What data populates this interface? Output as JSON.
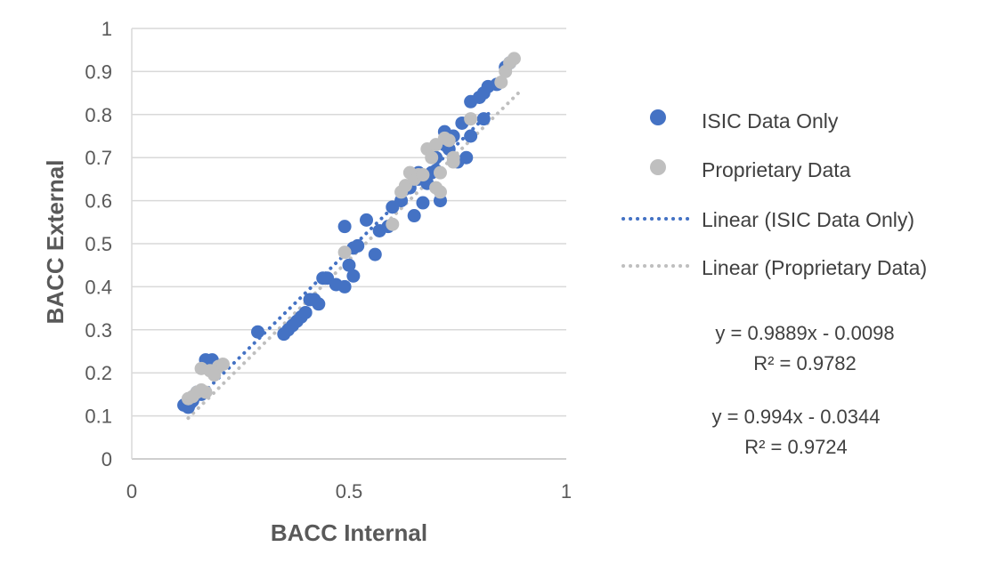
{
  "chart_data": {
    "type": "scatter",
    "title": "",
    "xlabel": "BACC Internal",
    "ylabel": "BACC External",
    "xlim": [
      0,
      1
    ],
    "ylim": [
      0,
      1
    ],
    "x_ticks": [
      "0",
      "0.5",
      "1"
    ],
    "y_ticks": [
      "0",
      "0.1",
      "0.2",
      "0.3",
      "0.4",
      "0.5",
      "0.6",
      "0.7",
      "0.8",
      "0.9",
      "1"
    ],
    "grid": "horizontal",
    "legend_position": "right",
    "series": [
      {
        "name": "ISIC Data Only",
        "color": "#4472C4",
        "points": [
          [
            0.12,
            0.125
          ],
          [
            0.13,
            0.12
          ],
          [
            0.135,
            0.13
          ],
          [
            0.14,
            0.135
          ],
          [
            0.15,
            0.155
          ],
          [
            0.16,
            0.15
          ],
          [
            0.17,
            0.23
          ],
          [
            0.18,
            0.21
          ],
          [
            0.185,
            0.23
          ],
          [
            0.19,
            0.22
          ],
          [
            0.29,
            0.295
          ],
          [
            0.35,
            0.29
          ],
          [
            0.36,
            0.3
          ],
          [
            0.37,
            0.31
          ],
          [
            0.38,
            0.32
          ],
          [
            0.39,
            0.33
          ],
          [
            0.4,
            0.34
          ],
          [
            0.41,
            0.37
          ],
          [
            0.42,
            0.37
          ],
          [
            0.43,
            0.36
          ],
          [
            0.44,
            0.42
          ],
          [
            0.45,
            0.42
          ],
          [
            0.47,
            0.405
          ],
          [
            0.49,
            0.4
          ],
          [
            0.5,
            0.45
          ],
          [
            0.51,
            0.425
          ],
          [
            0.51,
            0.49
          ],
          [
            0.52,
            0.495
          ],
          [
            0.49,
            0.54
          ],
          [
            0.54,
            0.555
          ],
          [
            0.56,
            0.475
          ],
          [
            0.57,
            0.53
          ],
          [
            0.59,
            0.54
          ],
          [
            0.6,
            0.585
          ],
          [
            0.62,
            0.6
          ],
          [
            0.64,
            0.63
          ],
          [
            0.65,
            0.565
          ],
          [
            0.66,
            0.65
          ],
          [
            0.67,
            0.595
          ],
          [
            0.68,
            0.64
          ],
          [
            0.69,
            0.665
          ],
          [
            0.7,
            0.7
          ],
          [
            0.7,
            0.67
          ],
          [
            0.71,
            0.6
          ],
          [
            0.72,
            0.76
          ],
          [
            0.73,
            0.72
          ],
          [
            0.74,
            0.75
          ],
          [
            0.76,
            0.78
          ],
          [
            0.77,
            0.7
          ],
          [
            0.78,
            0.75
          ],
          [
            0.78,
            0.83
          ],
          [
            0.8,
            0.84
          ],
          [
            0.81,
            0.85
          ],
          [
            0.82,
            0.865
          ],
          [
            0.84,
            0.87
          ],
          [
            0.86,
            0.91
          ],
          [
            0.87,
            0.92
          ],
          [
            0.72,
            0.73
          ],
          [
            0.66,
            0.665
          ],
          [
            0.75,
            0.69
          ],
          [
            0.81,
            0.79
          ]
        ],
        "trendline": {
          "label": "Linear (ISIC Data Only)",
          "equation": "y = 0.9889x - 0.0098",
          "r2": "R² = 0.9782",
          "slope": 0.9889,
          "intercept": -0.0098,
          "x_range": [
            0.13,
            0.83
          ]
        }
      },
      {
        "name": "Proprietary Data",
        "color": "#BFBFBF",
        "points": [
          [
            0.13,
            0.14
          ],
          [
            0.14,
            0.145
          ],
          [
            0.15,
            0.155
          ],
          [
            0.16,
            0.16
          ],
          [
            0.17,
            0.155
          ],
          [
            0.16,
            0.21
          ],
          [
            0.18,
            0.205
          ],
          [
            0.19,
            0.195
          ],
          [
            0.2,
            0.215
          ],
          [
            0.21,
            0.22
          ],
          [
            0.49,
            0.48
          ],
          [
            0.62,
            0.62
          ],
          [
            0.63,
            0.635
          ],
          [
            0.64,
            0.665
          ],
          [
            0.65,
            0.65
          ],
          [
            0.66,
            0.66
          ],
          [
            0.67,
            0.66
          ],
          [
            0.68,
            0.72
          ],
          [
            0.69,
            0.7
          ],
          [
            0.7,
            0.73
          ],
          [
            0.7,
            0.63
          ],
          [
            0.71,
            0.62
          ],
          [
            0.72,
            0.745
          ],
          [
            0.73,
            0.74
          ],
          [
            0.74,
            0.7
          ],
          [
            0.74,
            0.69
          ],
          [
            0.78,
            0.79
          ],
          [
            0.85,
            0.875
          ],
          [
            0.86,
            0.9
          ],
          [
            0.87,
            0.92
          ],
          [
            0.88,
            0.93
          ],
          [
            0.6,
            0.545
          ],
          [
            0.71,
            0.665
          ]
        ],
        "trendline": {
          "label": "Linear (Proprietary Data)",
          "equation": "y = 0.994x - 0.0344",
          "r2": "R² = 0.9724",
          "slope": 0.994,
          "intercept": -0.0344,
          "x_range": [
            0.13,
            0.9
          ]
        }
      }
    ]
  }
}
